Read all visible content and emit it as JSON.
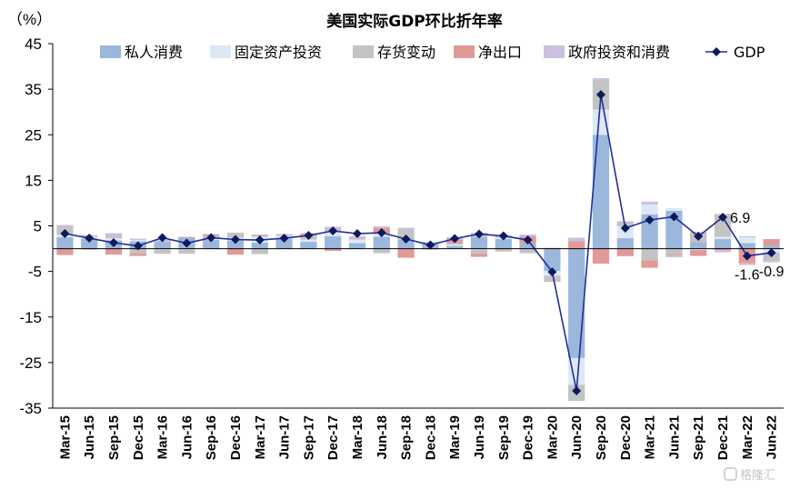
{
  "chart_data": {
    "type": "bar",
    "title": "美国实际GDP环比折年率",
    "ylabel": "（%）",
    "ylim": [
      -35,
      45
    ],
    "yticks": [
      45,
      35,
      25,
      15,
      5,
      -5,
      -15,
      -25,
      -35
    ],
    "categories": [
      "Mar-15",
      "Jun-15",
      "Sep-15",
      "Dec-15",
      "Mar-16",
      "Jun-16",
      "Sep-16",
      "Dec-16",
      "Mar-17",
      "Jun-17",
      "Sep-17",
      "Dec-17",
      "Mar-18",
      "Jun-18",
      "Sep-18",
      "Dec-18",
      "Mar-19",
      "Jun-19",
      "Sep-19",
      "Dec-19",
      "Mar-20",
      "Jun-20",
      "Sep-20",
      "Dec-20",
      "Mar-21",
      "Jun-21",
      "Sep-21",
      "Dec-21",
      "Mar-22",
      "Jun-22"
    ],
    "series": [
      {
        "name": "私人消费",
        "color": "#9bb7dc",
        "kind": "bar",
        "values": [
          2.5,
          2.2,
          1.8,
          1.6,
          1.5,
          2.4,
          1.9,
          1.8,
          1.3,
          2.2,
          1.5,
          2.7,
          1.2,
          2.6,
          2.0,
          1.0,
          0.6,
          2.5,
          2.1,
          1.2,
          -4.9,
          -24.0,
          25.0,
          2.3,
          7.5,
          8.3,
          1.4,
          2.1,
          1.2,
          0.7
        ]
      },
      {
        "name": "固定资产投资",
        "color": "#dde8f6",
        "kind": "bar",
        "values": [
          0.6,
          0.4,
          0.5,
          0.3,
          -0.2,
          -0.2,
          0.3,
          0.6,
          1.4,
          0.6,
          0.5,
          1.1,
          0.8,
          0.7,
          -0.1,
          0.4,
          0.3,
          -0.2,
          0.3,
          0.0,
          -1.0,
          -5.9,
          5.5,
          2.6,
          2.2,
          0.6,
          -0.3,
          0.5,
          1.3,
          -0.9
        ]
      },
      {
        "name": "存货变动",
        "color": "#c3c3c3",
        "kind": "bar",
        "values": [
          1.8,
          0.0,
          0.8,
          -1.1,
          -0.9,
          -0.9,
          0.6,
          1.0,
          -1.2,
          0.1,
          0.9,
          0.7,
          0.3,
          -1.0,
          2.2,
          0.1,
          0.3,
          -0.9,
          -0.5,
          -1.0,
          -1.4,
          -3.5,
          6.6,
          1.1,
          -2.6,
          -1.3,
          2.2,
          5.0,
          0.2,
          -1.9
        ]
      },
      {
        "name": "净出口",
        "color": "#e39898",
        "kind": "bar",
        "values": [
          -1.4,
          -0.2,
          -1.3,
          -0.5,
          0.0,
          0.1,
          0.3,
          -1.3,
          0.2,
          0.1,
          0.4,
          -0.5,
          0.0,
          1.2,
          -1.9,
          -0.2,
          0.8,
          -0.7,
          -0.1,
          1.5,
          0.0,
          1.6,
          -3.3,
          -1.6,
          -1.6,
          -0.2,
          -1.3,
          -0.3,
          -3.2,
          1.4
        ]
      },
      {
        "name": "政府投资和消费",
        "color": "#cdbfe0",
        "kind": "bar",
        "values": [
          0.3,
          0.4,
          0.3,
          0.3,
          0.4,
          0.1,
          0.1,
          0.1,
          0.2,
          0.2,
          0.1,
          0.3,
          0.4,
          0.4,
          0.4,
          0.0,
          0.5,
          1.0,
          0.6,
          0.4,
          0.2,
          0.8,
          0.3,
          -0.1,
          0.6,
          -0.4,
          0.1,
          -0.5,
          -0.4,
          -0.2
        ]
      },
      {
        "name": "GDP",
        "color": "#0d1b5c",
        "kind": "line",
        "values": [
          3.3,
          2.3,
          1.3,
          0.6,
          2.4,
          1.2,
          2.4,
          2.0,
          1.9,
          2.3,
          2.9,
          3.9,
          3.3,
          3.5,
          2.1,
          0.8,
          2.2,
          3.2,
          2.8,
          1.9,
          -5.1,
          -31.2,
          33.8,
          4.5,
          6.3,
          7.0,
          2.7,
          6.9,
          -1.6,
          -0.9
        ]
      }
    ],
    "annotations": [
      {
        "category": "Dec-21",
        "text": "6.9",
        "position": "right"
      },
      {
        "category": "Mar-22",
        "text": "-1.6",
        "position": "below"
      },
      {
        "category": "Jun-22",
        "text": "-0.9",
        "position": "below"
      }
    ],
    "legend": "top",
    "grid": false
  },
  "watermark": {
    "text": "格隆汇"
  }
}
